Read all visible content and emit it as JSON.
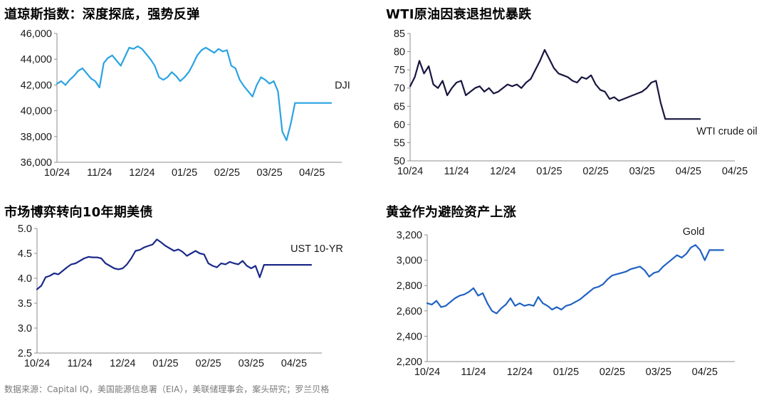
{
  "source_note": "数据来源：Capital IQ，美国能源信息署（EIA），美联储理事会，案头研究；罗兰贝格",
  "chart_data": [
    {
      "type": "line",
      "title": "道琼斯指数：深度探底，强势反弹",
      "color": "#29a3e3",
      "series_label": "DJI",
      "yticks": [
        "36,000",
        "38,000",
        "40,000",
        "42,000",
        "44,000",
        "46,000"
      ],
      "ylim": [
        36000,
        46000
      ],
      "xticks": [
        "10/24",
        "11/24",
        "12/24",
        "01/25",
        "02/25",
        "03/25",
        "04/25"
      ],
      "xlim": [
        0,
        6.7
      ],
      "grid": "none",
      "x": [
        0.0,
        0.1,
        0.2,
        0.3,
        0.4,
        0.5,
        0.6,
        0.7,
        0.8,
        0.9,
        1.0,
        1.1,
        1.2,
        1.3,
        1.4,
        1.5,
        1.6,
        1.7,
        1.8,
        1.9,
        2.0,
        2.1,
        2.2,
        2.3,
        2.4,
        2.5,
        2.6,
        2.7,
        2.8,
        2.9,
        3.0,
        3.1,
        3.2,
        3.3,
        3.4,
        3.5,
        3.6,
        3.7,
        3.8,
        3.9,
        4.0,
        4.1,
        4.2,
        4.3,
        4.4,
        4.5,
        4.6,
        4.7,
        4.8,
        4.9,
        5.0,
        5.1,
        5.2,
        5.3,
        5.4,
        5.5,
        5.6,
        5.7,
        5.8,
        5.9,
        6.0,
        6.05,
        6.1,
        6.2,
        6.3,
        6.35,
        6.45
      ],
      "values": [
        42100,
        42300,
        42000,
        42400,
        42700,
        43100,
        43300,
        42900,
        42500,
        42300,
        41800,
        43700,
        44100,
        44300,
        43900,
        43500,
        44200,
        44900,
        44800,
        45000,
        44800,
        44400,
        44000,
        43500,
        42600,
        42400,
        42600,
        43000,
        42700,
        42300,
        42600,
        43000,
        43600,
        44300,
        44700,
        44900,
        44700,
        44500,
        44800,
        44600,
        44700,
        43500,
        43300,
        42400,
        41900,
        41500,
        41100,
        42000,
        42600,
        42400,
        42100,
        42300,
        41500,
        38400,
        37700,
        39000,
        40600,
        40600,
        40600,
        40600,
        40600,
        40600,
        40600,
        40600,
        40600,
        40600,
        40600
      ]
    },
    {
      "type": "line",
      "title": "WTI原油因衰退担忧暴跌",
      "color": "#17163f",
      "series_label": "WTI crude oil",
      "yticks": [
        "50",
        "55",
        "60",
        "65",
        "70",
        "75",
        "80",
        "85"
      ],
      "ylim": [
        50,
        85
      ],
      "xticks": [
        "10/24",
        "11/24",
        "12/24",
        "01/25",
        "02/25",
        "03/25",
        "04/25",
        "04/25"
      ],
      "xlim": [
        0,
        7
      ],
      "grid": "none",
      "x": [
        0.0,
        0.1,
        0.2,
        0.3,
        0.4,
        0.5,
        0.6,
        0.7,
        0.8,
        0.9,
        1.0,
        1.1,
        1.2,
        1.3,
        1.4,
        1.5,
        1.6,
        1.7,
        1.8,
        1.9,
        2.0,
        2.1,
        2.2,
        2.3,
        2.4,
        2.5,
        2.6,
        2.7,
        2.8,
        2.9,
        3.0,
        3.1,
        3.2,
        3.3,
        3.4,
        3.5,
        3.6,
        3.7,
        3.8,
        3.9,
        4.0,
        4.1,
        4.2,
        4.3,
        4.4,
        4.5,
        4.6,
        4.7,
        4.8,
        4.9,
        5.0,
        5.1,
        5.2,
        5.3,
        5.4,
        5.5,
        5.6,
        5.7,
        5.8,
        5.9,
        6.0,
        6.1,
        6.15,
        6.25
      ],
      "values": [
        70.5,
        73,
        77.5,
        74,
        76,
        71,
        70,
        72,
        68,
        70,
        71.5,
        72,
        68,
        69,
        70,
        70.5,
        69,
        70,
        68.5,
        69,
        70,
        71,
        70.5,
        71,
        70,
        71.5,
        72.5,
        75,
        77.5,
        80.5,
        78,
        75.5,
        74,
        73.5,
        73,
        72,
        71.5,
        73,
        72.5,
        73.5,
        71,
        69.5,
        69,
        67,
        67.5,
        66.5,
        67,
        67.5,
        68,
        68.5,
        69,
        70,
        71.5,
        72,
        66,
        61.5,
        61.5,
        61.5,
        61.5,
        61.5,
        61.5,
        61.5,
        61.5,
        61.5
      ]
    },
    {
      "type": "line",
      "title": "市场博弈转向10年期美债",
      "color": "#1b2a8a",
      "series_label": "UST 10-YR",
      "yticks": [
        "2.5",
        "3.0",
        "3.5",
        "4.0",
        "4.5",
        "5.0"
      ],
      "ylim": [
        2.5,
        5.0
      ],
      "xticks": [
        "10/24",
        "11/24",
        "12/24",
        "01/25",
        "02/25",
        "03/25",
        "04/25"
      ],
      "xlim": [
        0,
        6.65
      ],
      "grid": "none",
      "x": [
        0.0,
        0.1,
        0.2,
        0.3,
        0.4,
        0.5,
        0.6,
        0.7,
        0.8,
        0.9,
        1.0,
        1.1,
        1.2,
        1.3,
        1.4,
        1.5,
        1.6,
        1.7,
        1.8,
        1.9,
        2.0,
        2.1,
        2.2,
        2.3,
        2.4,
        2.5,
        2.6,
        2.7,
        2.8,
        2.9,
        3.0,
        3.1,
        3.2,
        3.3,
        3.4,
        3.5,
        3.6,
        3.7,
        3.8,
        3.9,
        4.0,
        4.1,
        4.2,
        4.3,
        4.4,
        4.5,
        4.6,
        4.7,
        4.8,
        4.9,
        5.0,
        5.1,
        5.2,
        5.3,
        5.4,
        5.5,
        5.6,
        5.7,
        5.8,
        5.9,
        6.0,
        6.1,
        6.2,
        6.3,
        6.4
      ],
      "values": [
        3.78,
        3.85,
        4.02,
        4.05,
        4.1,
        4.08,
        4.15,
        4.22,
        4.28,
        4.3,
        4.35,
        4.4,
        4.43,
        4.42,
        4.42,
        4.4,
        4.3,
        4.25,
        4.2,
        4.18,
        4.2,
        4.28,
        4.4,
        4.55,
        4.57,
        4.62,
        4.65,
        4.68,
        4.78,
        4.72,
        4.65,
        4.6,
        4.55,
        4.58,
        4.53,
        4.45,
        4.5,
        4.55,
        4.5,
        4.48,
        4.3,
        4.25,
        4.22,
        4.3,
        4.28,
        4.33,
        4.3,
        4.28,
        4.35,
        4.25,
        4.2,
        4.25,
        4.02,
        4.27,
        4.27,
        4.27,
        4.27,
        4.27,
        4.27,
        4.27,
        4.27,
        4.27,
        4.27,
        4.27,
        4.27
      ]
    },
    {
      "type": "line",
      "title": "黄金作为避险资产上涨",
      "color": "#1f62c2",
      "series_label": "Gold",
      "yticks": [
        "2,200",
        "2,400",
        "2,600",
        "2,800",
        "3,000",
        "3,200"
      ],
      "ylim": [
        2200,
        3200
      ],
      "xticks": [
        "10/24",
        "11/24",
        "12/24",
        "01/25",
        "02/25",
        "03/25",
        "04/25"
      ],
      "xlim": [
        0,
        6.65
      ],
      "grid": "none",
      "x": [
        0.0,
        0.1,
        0.2,
        0.3,
        0.4,
        0.5,
        0.6,
        0.7,
        0.8,
        0.9,
        1.0,
        1.1,
        1.2,
        1.3,
        1.4,
        1.5,
        1.6,
        1.7,
        1.8,
        1.9,
        2.0,
        2.1,
        2.2,
        2.3,
        2.4,
        2.5,
        2.6,
        2.7,
        2.8,
        2.9,
        3.0,
        3.1,
        3.2,
        3.3,
        3.4,
        3.5,
        3.6,
        3.7,
        3.8,
        3.9,
        4.0,
        4.1,
        4.2,
        4.3,
        4.4,
        4.5,
        4.6,
        4.7,
        4.8,
        4.9,
        5.0,
        5.1,
        5.2,
        5.3,
        5.4,
        5.5,
        5.6,
        5.7,
        5.8,
        5.9,
        6.0,
        6.1,
        6.2,
        6.3,
        6.4
      ],
      "values": [
        2660,
        2650,
        2680,
        2630,
        2640,
        2670,
        2700,
        2720,
        2730,
        2750,
        2780,
        2720,
        2740,
        2660,
        2600,
        2580,
        2620,
        2650,
        2700,
        2640,
        2660,
        2640,
        2650,
        2640,
        2710,
        2660,
        2640,
        2610,
        2630,
        2610,
        2640,
        2650,
        2670,
        2690,
        2720,
        2750,
        2780,
        2790,
        2810,
        2850,
        2880,
        2890,
        2900,
        2910,
        2930,
        2940,
        2950,
        2920,
        2870,
        2900,
        2910,
        2950,
        2980,
        3010,
        3040,
        3020,
        3050,
        3100,
        3120,
        3080,
        3000,
        3080,
        3080,
        3080,
        3080
      ]
    }
  ]
}
